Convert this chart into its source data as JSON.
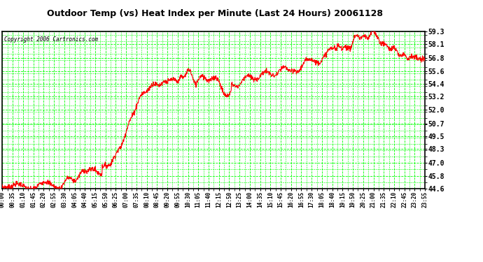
{
  "title": "Outdoor Temp (vs) Heat Index per Minute (Last 24 Hours) 20061128",
  "copyright_text": "Copyright 2006 Cartronics.com",
  "background_color": "#ffffff",
  "plot_bg_color": "#ffffff",
  "grid_color": "#00ff00",
  "line_color": "#ff0000",
  "text_color": "#000000",
  "y_ticks": [
    44.6,
    45.8,
    47.0,
    48.3,
    49.5,
    50.7,
    52.0,
    53.2,
    54.4,
    55.6,
    56.8,
    58.1,
    59.3
  ],
  "ylim": [
    44.6,
    59.3
  ],
  "x_tick_labels": [
    "00:00",
    "00:35",
    "01:10",
    "01:45",
    "02:20",
    "02:55",
    "03:30",
    "04:05",
    "04:40",
    "05:15",
    "05:50",
    "06:25",
    "07:00",
    "07:35",
    "08:10",
    "08:45",
    "09:20",
    "09:55",
    "10:30",
    "11:05",
    "11:40",
    "12:15",
    "12:50",
    "13:25",
    "14:00",
    "14:35",
    "15:10",
    "15:45",
    "16:20",
    "16:55",
    "17:30",
    "18:05",
    "18:40",
    "19:15",
    "19:50",
    "20:25",
    "21:00",
    "21:35",
    "22:10",
    "22:45",
    "23:20",
    "23:55"
  ],
  "n_xticks": 42,
  "xlim": [
    0,
    1440
  ],
  "noise_seed": 7
}
